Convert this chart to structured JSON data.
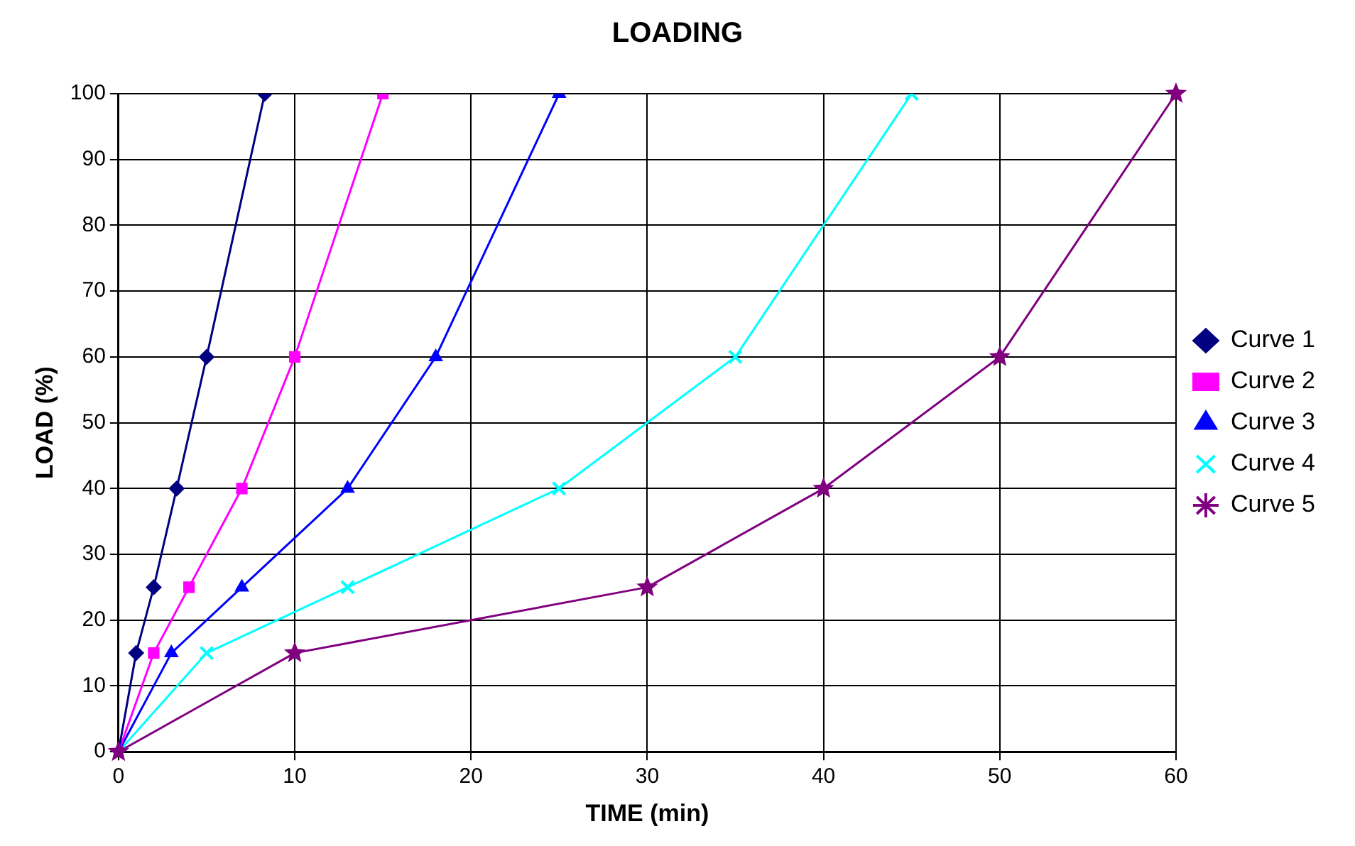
{
  "chart_data": {
    "type": "line",
    "title": "LOADING",
    "xlabel": "TIME (min)",
    "ylabel": "LOAD (%)",
    "series": [
      {
        "name": "Curve 1",
        "color": "#000080",
        "marker": "diamond",
        "x": [
          0,
          1,
          2,
          3.3,
          5,
          8.3
        ],
        "values": [
          0,
          15,
          25,
          40,
          60,
          100
        ]
      },
      {
        "name": "Curve 2",
        "color": "#ff00ff",
        "marker": "square",
        "x": [
          0,
          2,
          4,
          7,
          10,
          15
        ],
        "values": [
          0,
          15,
          25,
          40,
          60,
          100
        ]
      },
      {
        "name": "Curve 3",
        "color": "#0000ff",
        "marker": "triangle",
        "x": [
          0,
          3,
          7,
          13,
          18,
          25
        ],
        "values": [
          0,
          15,
          25,
          40,
          60,
          100
        ]
      },
      {
        "name": "Curve 4",
        "color": "#00ffff",
        "marker": "cross",
        "x": [
          0,
          5,
          13,
          25,
          35,
          45
        ],
        "values": [
          0,
          15,
          25,
          40,
          60,
          100
        ]
      },
      {
        "name": "Curve 5",
        "color": "#800080",
        "marker": "star",
        "x": [
          0,
          10,
          30,
          40,
          50,
          60
        ],
        "values": [
          0,
          15,
          25,
          40,
          60,
          100
        ]
      }
    ],
    "xlim": [
      0,
      60
    ],
    "xticks": [
      0,
      10,
      20,
      30,
      40,
      50,
      60
    ],
    "ylim": [
      0,
      100
    ],
    "yticks": [
      0,
      10,
      20,
      30,
      40,
      50,
      60,
      70,
      80,
      90,
      100
    ],
    "grid": true,
    "legend": "right",
    "line_style": "solid"
  }
}
